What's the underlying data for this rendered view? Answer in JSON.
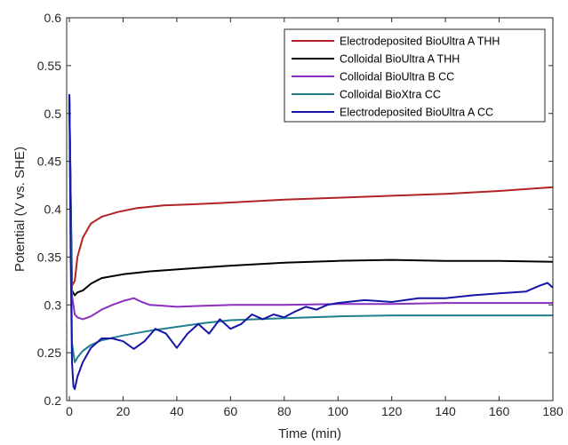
{
  "chart_data": {
    "type": "line",
    "title": "",
    "xlabel": "Time (min)",
    "ylabel": "Potential (V vs. SHE)",
    "xlim": [
      -1,
      180
    ],
    "ylim": [
      0.2,
      0.6
    ],
    "xticks": [
      0,
      20,
      40,
      60,
      80,
      100,
      120,
      140,
      160,
      180
    ],
    "yticks": [
      0.2,
      0.25,
      0.3,
      0.35,
      0.4,
      0.45,
      0.5,
      0.55,
      0.6
    ],
    "xtick_labels": [
      "0",
      "20",
      "40",
      "60",
      "80",
      "100",
      "120",
      "140",
      "160",
      "180"
    ],
    "ytick_labels": [
      "0.2",
      "0.25",
      "0.3",
      "0.35",
      "0.4",
      "0.45",
      "0.5",
      "0.55",
      "0.6"
    ],
    "grid": false,
    "legend_position": "top-right",
    "series": [
      {
        "name": "Electrodeposited BioUltra A THH",
        "color": "#b22222",
        "x": [
          0,
          0.5,
          1,
          2,
          3,
          5,
          8,
          12,
          18,
          25,
          35,
          45,
          60,
          80,
          100,
          120,
          140,
          160,
          170,
          180
        ],
        "y": [
          0.52,
          0.42,
          0.32,
          0.325,
          0.35,
          0.37,
          0.385,
          0.392,
          0.397,
          0.401,
          0.404,
          0.405,
          0.407,
          0.41,
          0.412,
          0.414,
          0.416,
          0.419,
          0.421,
          0.423
        ]
      },
      {
        "name": "Colloidal BioUltra A THH",
        "color": "#000000",
        "x": [
          0,
          0.5,
          1,
          2,
          3,
          5,
          8,
          10,
          12,
          20,
          30,
          45,
          60,
          80,
          100,
          120,
          140,
          160,
          180
        ],
        "y": [
          0.52,
          0.42,
          0.315,
          0.31,
          0.313,
          0.315,
          0.322,
          0.325,
          0.328,
          0.332,
          0.335,
          0.338,
          0.341,
          0.344,
          0.346,
          0.347,
          0.346,
          0.346,
          0.345
        ]
      },
      {
        "name": "Colloidal BioUltra B CC",
        "color": "#8b2fc0",
        "x": [
          0,
          0.5,
          1,
          2,
          3,
          5,
          8,
          12,
          16,
          20,
          24,
          27,
          30,
          35,
          40,
          50,
          60,
          80,
          100,
          120,
          140,
          160,
          180
        ],
        "y": [
          0.52,
          0.4,
          0.31,
          0.29,
          0.287,
          0.285,
          0.288,
          0.295,
          0.3,
          0.304,
          0.307,
          0.303,
          0.3,
          0.299,
          0.298,
          0.299,
          0.3,
          0.3,
          0.301,
          0.301,
          0.302,
          0.302,
          0.302
        ]
      },
      {
        "name": "Colloidal BioXtra CC",
        "color": "#1f7f8f",
        "x": [
          0,
          0.5,
          1,
          2,
          3,
          5,
          8,
          12,
          20,
          30,
          40,
          50,
          60,
          80,
          100,
          120,
          140,
          160,
          180
        ],
        "y": [
          0.52,
          0.4,
          0.26,
          0.24,
          0.245,
          0.252,
          0.258,
          0.263,
          0.268,
          0.273,
          0.277,
          0.281,
          0.284,
          0.286,
          0.288,
          0.289,
          0.289,
          0.289,
          0.289
        ]
      },
      {
        "name": "Electrodeposited BioUltra A CC",
        "color": "#1515a8",
        "x": [
          0,
          0.5,
          1,
          1.5,
          2,
          3,
          5,
          8,
          12,
          16,
          20,
          24,
          28,
          32,
          36,
          40,
          44,
          48,
          52,
          56,
          60,
          64,
          68,
          72,
          76,
          80,
          84,
          88,
          92,
          96,
          100,
          110,
          120,
          130,
          140,
          150,
          160,
          170,
          175,
          178,
          180
        ],
        "y": [
          0.52,
          0.35,
          0.24,
          0.215,
          0.212,
          0.225,
          0.24,
          0.255,
          0.265,
          0.265,
          0.262,
          0.254,
          0.262,
          0.275,
          0.27,
          0.255,
          0.27,
          0.28,
          0.27,
          0.285,
          0.275,
          0.28,
          0.29,
          0.285,
          0.29,
          0.287,
          0.293,
          0.298,
          0.295,
          0.3,
          0.302,
          0.305,
          0.303,
          0.307,
          0.307,
          0.31,
          0.312,
          0.314,
          0.32,
          0.323,
          0.318
        ]
      }
    ]
  }
}
